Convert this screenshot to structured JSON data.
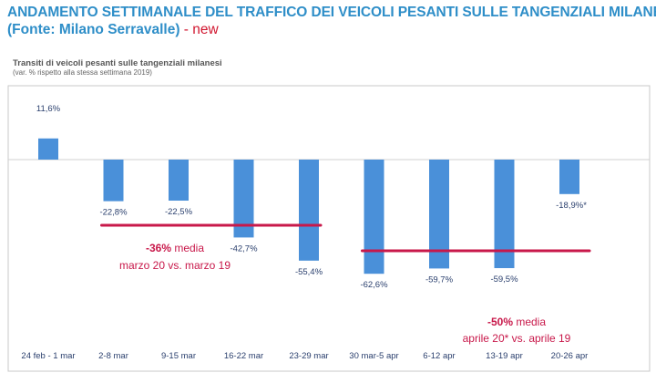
{
  "header": {
    "title_line1": "ANDAMENTO SETTIMANALE DEL TRAFFICO DEI VEICOLI PESANTI SULLE TANGENZIALI MILANESI",
    "title_line2": "(Fonte: Milano Serravalle)",
    "title_separator": " - ",
    "title_new": "new"
  },
  "colors": {
    "title": "#2e8ec8",
    "bar": "#4a90d9",
    "label": "#2a3f6d",
    "annotation": "#c8184a",
    "frame": "#c8c8c8"
  },
  "chart_data": {
    "type": "bar",
    "title": "Transiti di veicoli pesanti sulle tangenziali milanesi",
    "subtitle": "(var. % rispetto alla stessa settimana 2019)",
    "categories": [
      "24 feb - 1 mar",
      "2-8 mar",
      "9-15 mar",
      "16-22 mar",
      "23-29 mar",
      "30 mar-5 apr",
      "6-12 apr",
      "13-19 apr",
      "20-26 apr"
    ],
    "values": [
      11.6,
      -22.8,
      -22.5,
      -42.7,
      -55.4,
      -62.6,
      -59.7,
      -59.5,
      -18.9
    ],
    "data_labels": [
      "11,6%",
      "-22,8%",
      "-22,5%",
      "-42,7%",
      "-55,4%",
      "-62,6%",
      "-59,7%",
      "-59,5%",
      "-18,9%*"
    ],
    "ylim": [
      -75,
      15
    ],
    "grid": false,
    "legend": "none",
    "annotations": [
      {
        "type": "average_line",
        "value": -36,
        "from_category": 1,
        "to_category": 4,
        "label_value": "-36%",
        "label_text": " media",
        "label_line2": "marzo 20 vs. marzo 19"
      },
      {
        "type": "average_line",
        "value": -50,
        "from_category": 5,
        "to_category": 8,
        "label_value": "-50%",
        "label_text": " media",
        "label_line2": "aprile 20* vs. aprile 19"
      }
    ]
  }
}
